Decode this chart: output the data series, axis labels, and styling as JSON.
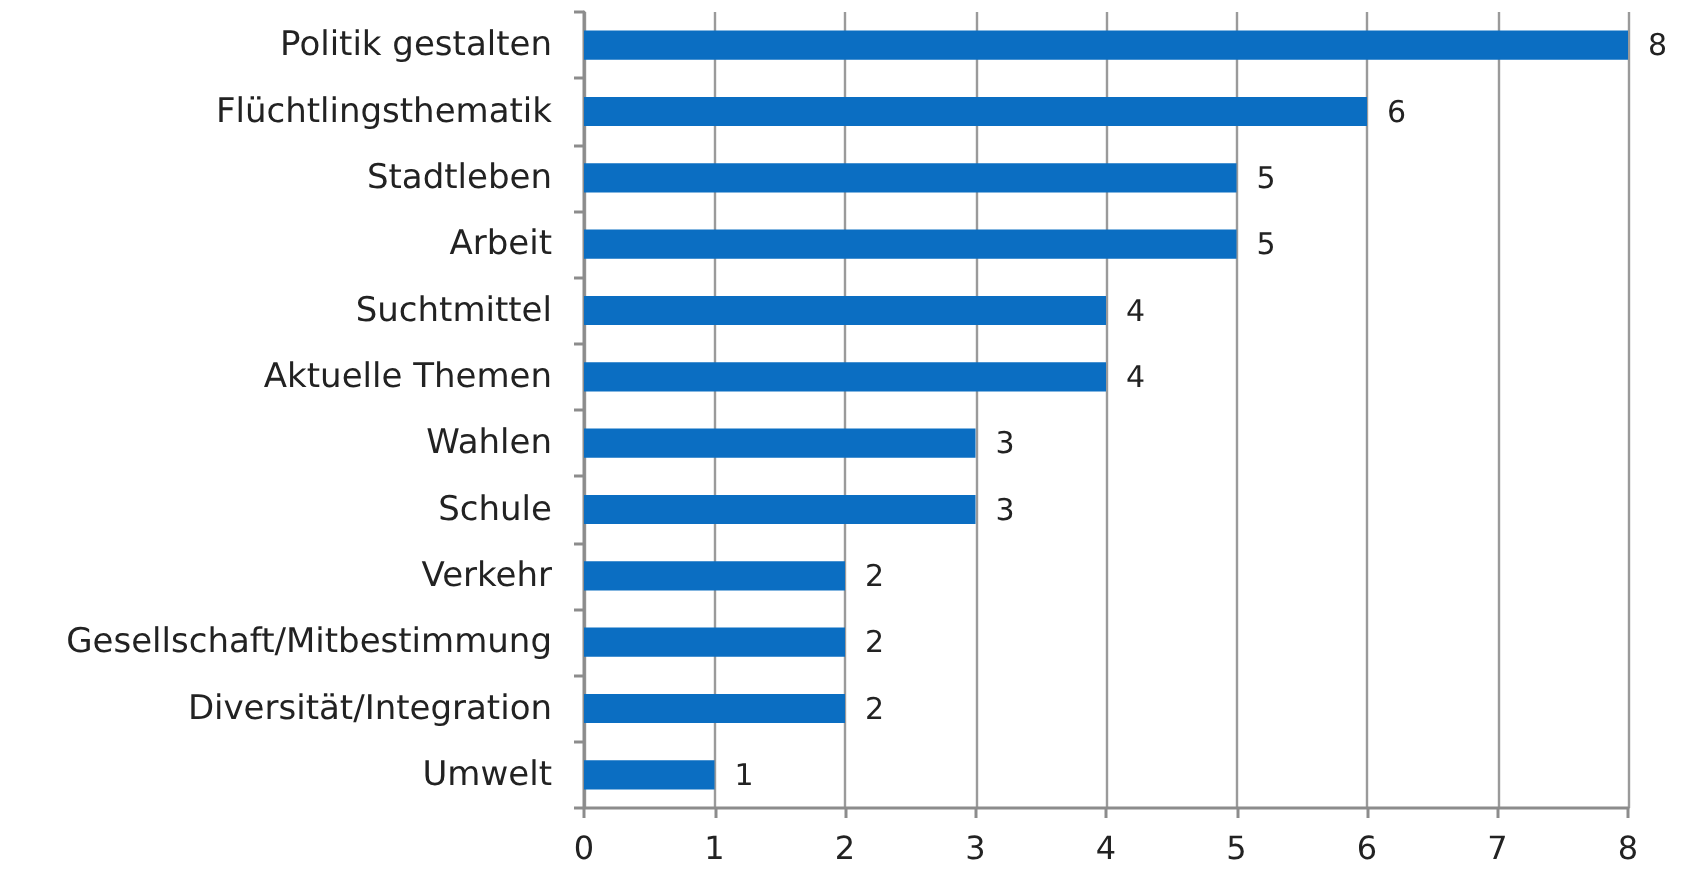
{
  "chart_data": {
    "type": "bar",
    "orientation": "horizontal",
    "categories": [
      "Politik gestalten",
      "Flüchtlingsthematik",
      "Stadtleben",
      "Arbeit",
      "Suchtmittel",
      "Aktuelle Themen",
      "Wahlen",
      "Schule",
      "Verkehr",
      "Gesellschaft/Mitbestimmung",
      "Diversität/Integration",
      "Umwelt"
    ],
    "values": [
      8,
      6,
      5,
      5,
      4,
      4,
      3,
      3,
      2,
      2,
      2,
      1
    ],
    "color": "#0b6ec2",
    "xlim": [
      0,
      8
    ],
    "xticks": [
      0,
      1,
      2,
      3,
      4,
      5,
      6,
      7,
      8
    ],
    "grid": "x",
    "data_labels": true
  }
}
